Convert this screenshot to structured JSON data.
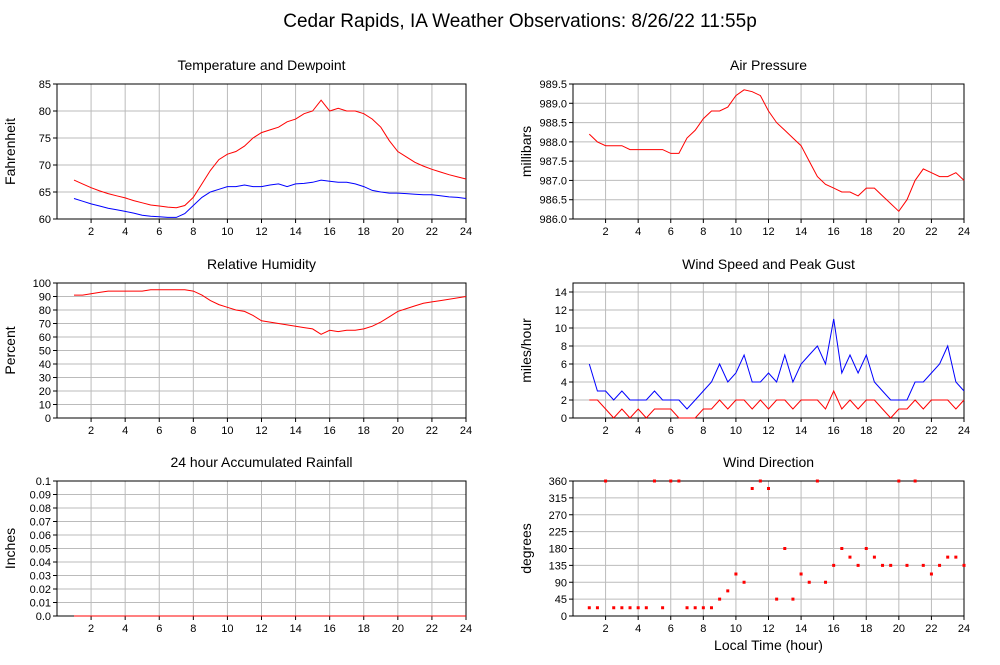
{
  "title": "Cedar Rapids, IA Weather Observations: 8/26/22 11:55p",
  "chart_data": [
    {
      "type": "line",
      "title": "Temperature and Dewpoint",
      "ylabel": "Fahrenheit",
      "x": [
        1,
        1.5,
        2,
        2.5,
        3,
        3.5,
        4,
        4.5,
        5,
        5.5,
        6,
        6.5,
        7,
        7.5,
        8,
        8.5,
        9,
        9.5,
        10,
        10.5,
        11,
        11.5,
        12,
        12.5,
        13,
        13.5,
        14,
        14.5,
        15,
        15.5,
        16,
        16.5,
        17,
        17.5,
        18,
        18.5,
        19,
        19.5,
        20,
        20.5,
        21,
        21.5,
        22,
        22.5,
        23,
        23.5,
        24
      ],
      "series": [
        {
          "color": "#ff0000",
          "values": [
            67.2,
            66.5,
            65.8,
            65.2,
            64.7,
            64.3,
            63.9,
            63.4,
            63,
            62.6,
            62.4,
            62.2,
            62.1,
            62.5,
            64,
            66.5,
            69,
            71,
            72,
            72.5,
            73.5,
            75,
            76,
            76.5,
            77,
            78,
            78.5,
            79.5,
            80,
            82,
            80,
            80.5,
            80,
            80,
            79.5,
            78.5,
            77,
            74.5,
            72.5,
            71.5,
            70.5,
            69.8,
            69.2,
            68.7,
            68.2,
            67.8,
            67.4
          ]
        },
        {
          "color": "#0000ff",
          "values": [
            63.8,
            63.3,
            62.8,
            62.4,
            62,
            61.7,
            61.4,
            61.1,
            60.7,
            60.5,
            60.4,
            60.3,
            60.3,
            61,
            62.5,
            64,
            65,
            65.5,
            66,
            66,
            66.3,
            66,
            66,
            66.3,
            66.5,
            66,
            66.5,
            66.6,
            66.8,
            67.2,
            67,
            66.8,
            66.8,
            66.5,
            66,
            65.3,
            65,
            64.8,
            64.8,
            64.7,
            64.6,
            64.5,
            64.5,
            64.3,
            64.1,
            64,
            63.8
          ]
        }
      ],
      "xlim": [
        0,
        24
      ],
      "xticks": [
        2,
        4,
        6,
        8,
        10,
        12,
        14,
        16,
        18,
        20,
        22,
        24
      ],
      "ylim": [
        60,
        85
      ],
      "yticks": [
        60,
        65,
        70,
        75,
        80,
        85
      ],
      "grid": true
    },
    {
      "type": "line",
      "title": "Air Pressure",
      "ylabel": "millibars",
      "x": [
        1,
        1.5,
        2,
        2.5,
        3,
        3.5,
        4,
        4.5,
        5,
        5.5,
        6,
        6.5,
        7,
        7.5,
        8,
        8.5,
        9,
        9.5,
        10,
        10.5,
        11,
        11.5,
        12,
        12.5,
        13,
        13.5,
        14,
        14.5,
        15,
        15.5,
        16,
        16.5,
        17,
        17.5,
        18,
        18.5,
        19,
        19.5,
        20,
        20.5,
        21,
        21.5,
        22,
        22.5,
        23,
        23.5,
        24
      ],
      "series": [
        {
          "color": "#ff0000",
          "values": [
            988.2,
            988.0,
            987.9,
            987.9,
            987.9,
            987.8,
            987.8,
            987.8,
            987.8,
            987.8,
            987.7,
            987.7,
            988.1,
            988.3,
            988.6,
            988.8,
            988.8,
            988.9,
            989.2,
            989.35,
            989.3,
            989.2,
            988.8,
            988.5,
            988.3,
            988.1,
            987.9,
            987.5,
            987.1,
            986.9,
            986.8,
            986.7,
            986.7,
            986.6,
            986.8,
            986.8,
            986.6,
            986.4,
            986.2,
            986.5,
            987.0,
            987.3,
            987.2,
            987.1,
            987.1,
            987.2,
            987.0
          ]
        }
      ],
      "xlim": [
        0,
        24
      ],
      "xticks": [
        2,
        4,
        6,
        8,
        10,
        12,
        14,
        16,
        18,
        20,
        22,
        24
      ],
      "ylim": [
        986.0,
        989.5
      ],
      "yticks": [
        {
          "value": 986,
          "label": "986.0"
        },
        986.5,
        {
          "value": 987,
          "label": "987.0"
        },
        987.5,
        {
          "value": 988,
          "label": "988.0"
        },
        988.5,
        {
          "value": 989,
          "label": "989.0"
        },
        989.5
      ],
      "grid": true
    },
    {
      "type": "line",
      "title": "Relative Humidity",
      "ylabel": "Percent",
      "x": [
        1,
        1.5,
        2,
        2.5,
        3,
        3.5,
        4,
        4.5,
        5,
        5.5,
        6,
        6.5,
        7,
        7.5,
        8,
        8.5,
        9,
        9.5,
        10,
        10.5,
        11,
        11.5,
        12,
        12.5,
        13,
        13.5,
        14,
        14.5,
        15,
        15.5,
        16,
        16.5,
        17,
        17.5,
        18,
        18.5,
        19,
        19.5,
        20,
        20.5,
        21,
        21.5,
        22,
        22.5,
        23,
        23.5,
        24
      ],
      "series": [
        {
          "color": "#ff0000",
          "values": [
            91,
            91,
            92,
            93,
            94,
            94,
            94,
            94,
            94,
            95,
            95,
            95,
            95,
            95,
            94,
            91,
            87,
            84,
            82,
            80,
            79,
            76,
            72,
            71,
            70,
            69,
            68,
            67,
            66,
            62,
            65,
            64,
            65,
            65,
            66,
            68,
            71,
            75,
            79,
            81,
            83,
            85,
            86,
            87,
            88,
            89,
            90
          ]
        }
      ],
      "xlim": [
        0,
        24
      ],
      "xticks": [
        2,
        4,
        6,
        8,
        10,
        12,
        14,
        16,
        18,
        20,
        22,
        24
      ],
      "ylim": [
        0,
        100
      ],
      "yticks": [
        0,
        10,
        20,
        30,
        40,
        50,
        60,
        70,
        80,
        90,
        100
      ],
      "grid": true
    },
    {
      "type": "line",
      "title": "Wind Speed and Peak Gust",
      "ylabel": "miles/hour",
      "x": [
        1,
        1.5,
        2,
        2.5,
        3,
        3.5,
        4,
        4.5,
        5,
        5.5,
        6,
        6.5,
        7,
        7.5,
        8,
        8.5,
        9,
        9.5,
        10,
        10.5,
        11,
        11.5,
        12,
        12.5,
        13,
        13.5,
        14,
        14.5,
        15,
        15.5,
        16,
        16.5,
        17,
        17.5,
        18,
        18.5,
        19,
        19.5,
        20,
        20.5,
        21,
        21.5,
        22,
        22.5,
        23,
        23.5,
        24
      ],
      "series": [
        {
          "color": "#0000ff",
          "values": [
            6,
            3,
            3,
            2,
            3,
            2,
            2,
            2,
            3,
            2,
            2,
            2,
            1,
            2,
            3,
            4,
            6,
            4,
            5,
            7,
            4,
            4,
            5,
            4,
            7,
            4,
            6,
            7,
            8,
            6,
            11,
            5,
            7,
            5,
            7,
            4,
            3,
            2,
            2,
            2,
            4,
            4,
            5,
            6,
            8,
            4,
            3
          ]
        },
        {
          "color": "#ff0000",
          "values": [
            2,
            2,
            1,
            0,
            1,
            0,
            1,
            0,
            1,
            1,
            1,
            0,
            0,
            0,
            1,
            1,
            2,
            1,
            2,
            2,
            1,
            2,
            1,
            2,
            2,
            1,
            2,
            2,
            2,
            1,
            3,
            1,
            2,
            1,
            2,
            2,
            1,
            0,
            1,
            1,
            2,
            1,
            2,
            2,
            2,
            1,
            2
          ]
        }
      ],
      "xlim": [
        0,
        24
      ],
      "xticks": [
        2,
        4,
        6,
        8,
        10,
        12,
        14,
        16,
        18,
        20,
        22,
        24
      ],
      "ylim": [
        0,
        15
      ],
      "yticks": [
        0,
        2,
        4,
        6,
        8,
        10,
        12,
        14
      ],
      "grid": true
    },
    {
      "type": "line",
      "title": "24 hour Accumulated Rainfall",
      "ylabel": "Inches",
      "x": [
        1,
        2,
        3,
        4,
        5,
        6,
        7,
        8,
        9,
        10,
        11,
        12,
        13,
        14,
        15,
        16,
        17,
        18,
        19,
        20,
        21,
        22,
        23,
        24
      ],
      "series": [
        {
          "color": "#ff0000",
          "values": [
            0,
            0,
            0,
            0,
            0,
            0,
            0,
            0,
            0,
            0,
            0,
            0,
            0,
            0,
            0,
            0,
            0,
            0,
            0,
            0,
            0,
            0,
            0,
            0
          ]
        }
      ],
      "xlim": [
        0,
        24
      ],
      "xticks": [
        2,
        4,
        6,
        8,
        10,
        12,
        14,
        16,
        18,
        20,
        22,
        24
      ],
      "ylim": [
        0,
        0.1
      ],
      "yticks": [
        {
          "value": 0,
          "label": "0.0"
        },
        0.01,
        0.02,
        0.03,
        0.04,
        0.05,
        0.06,
        0.07,
        0.08,
        0.09,
        0.1
      ],
      "grid": true
    },
    {
      "type": "scatter",
      "title": "Wind Direction",
      "ylabel": "degrees",
      "xlabel": "Local Time (hour)",
      "x": [
        1,
        1.5,
        2,
        2.5,
        3,
        3.5,
        4,
        4.5,
        5,
        5.5,
        6,
        6.5,
        7,
        7.5,
        8,
        8.5,
        9,
        9.5,
        10,
        10.5,
        11,
        11.5,
        12,
        12.5,
        13,
        13.5,
        14,
        14.5,
        15,
        15.5,
        16,
        16.5,
        17,
        17.5,
        18,
        18.5,
        19,
        19.5,
        20,
        20.5,
        21,
        21.5,
        22,
        22.5,
        23,
        23.5,
        24
      ],
      "series": [
        {
          "color": "#ff0000",
          "values": [
            22,
            22,
            360,
            22,
            22,
            22,
            22,
            22,
            360,
            22,
            360,
            360,
            22,
            22,
            22,
            22,
            45,
            67,
            112,
            90,
            340,
            360,
            340,
            45,
            180,
            45,
            112,
            90,
            360,
            90,
            135,
            180,
            157,
            135,
            180,
            157,
            135,
            135,
            360,
            135,
            360,
            135,
            112,
            135,
            157,
            157,
            135
          ]
        }
      ],
      "xlim": [
        0,
        24
      ],
      "xticks": [
        2,
        4,
        6,
        8,
        10,
        12,
        14,
        16,
        18,
        20,
        22,
        24
      ],
      "ylim": [
        0,
        360
      ],
      "yticks": [
        0,
        45,
        90,
        135,
        180,
        225,
        270,
        315,
        360
      ],
      "grid": true
    }
  ]
}
